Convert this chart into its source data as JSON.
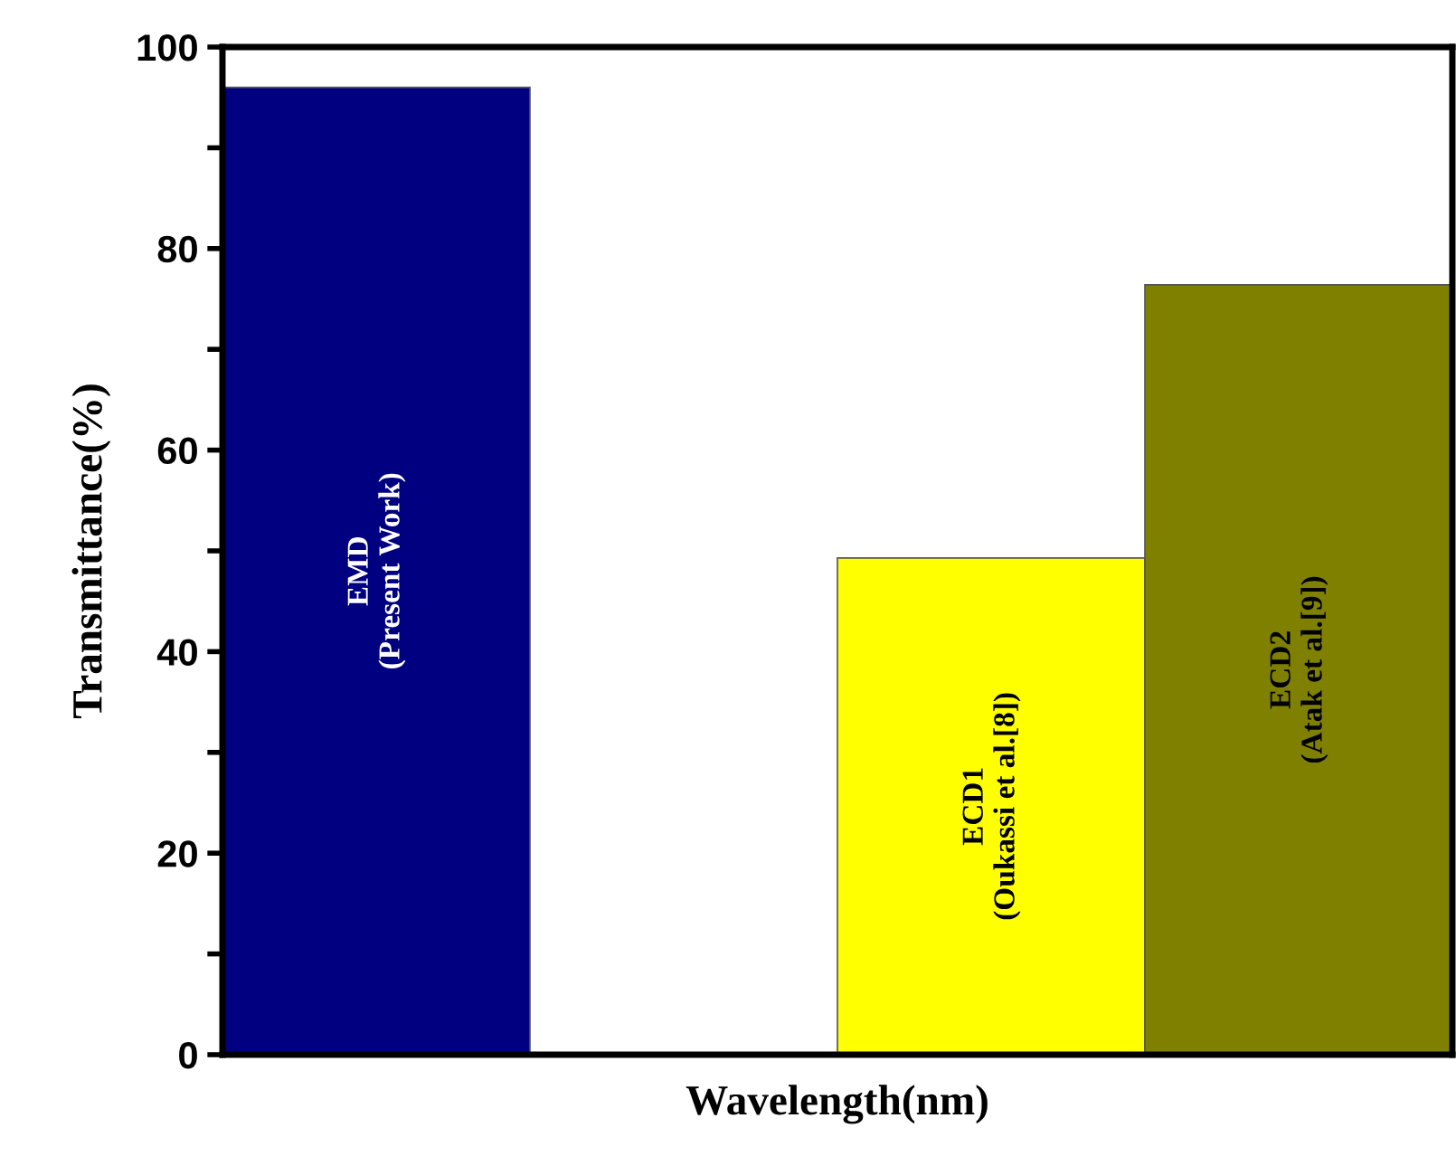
{
  "chart_data": {
    "type": "bar",
    "xlabel": "Wavelength(nm)",
    "ylabel": "Transmittance(%)",
    "categories": [
      "EMD\n(Present Work)",
      null,
      "ECD1\n(Oukassi et al.[8])",
      "ECD2\n(Atak et al.[9])"
    ],
    "values": [
      96,
      null,
      49.3,
      76.4
    ],
    "colors": [
      "#000080",
      "#ffffff",
      "#ffff00",
      "#808000"
    ],
    "ylim": [
      0,
      100
    ],
    "yticks": [
      0,
      {
        "value": 10,
        "label": null
      },
      20,
      {
        "value": 30,
        "label": null
      },
      40,
      {
        "value": 50,
        "label": null
      },
      60,
      {
        "value": 70,
        "label": null
      },
      80,
      {
        "value": 90,
        "label": null
      },
      100
    ],
    "tick_labels": "y",
    "grid": false,
    "legend": false
  }
}
